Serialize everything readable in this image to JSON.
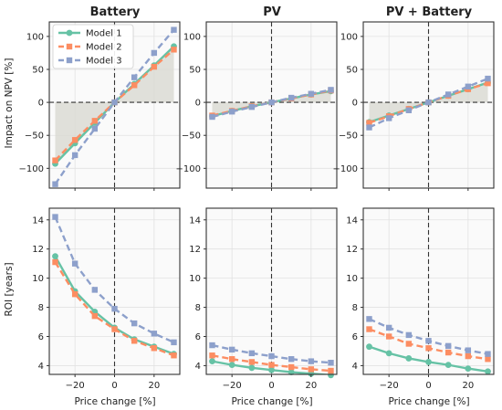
{
  "figure": {
    "titles": [
      "Battery",
      "PV",
      "PV + Battery"
    ],
    "ylabel_top": "Impact on NPV [%]",
    "ylabel_bottom": "ROI [years]",
    "xlabel": "Price change [%]"
  },
  "legend": {
    "placement": "upper-left of first panel",
    "items": [
      {
        "label": "Model 1",
        "color": "#66c2a5",
        "marker": "circle",
        "linestyle": "solid"
      },
      {
        "label": "Model 2",
        "color": "#fc8d62",
        "marker": "square",
        "linestyle": "dashed"
      },
      {
        "label": "Model 3",
        "color": "#8da0cb",
        "marker": "square",
        "linestyle": "dashed"
      }
    ]
  },
  "chart_data": [
    {
      "type": "line",
      "title": "Battery",
      "xlabel": "",
      "ylabel": "Impact on NPV [%]",
      "x": [
        -30,
        -20,
        -10,
        0,
        10,
        20,
        30
      ],
      "xlim": [
        -33,
        33
      ],
      "ylim": [
        -130,
        122
      ],
      "xticks": [
        -20,
        0,
        20
      ],
      "yticks": [
        -100,
        -50,
        0,
        50,
        100
      ],
      "grid": true,
      "zero_lines": true,
      "shaded_band": true,
      "series": [
        {
          "name": "Model 1",
          "values": [
            -93,
            -62,
            -31,
            0,
            28,
            56,
            85
          ]
        },
        {
          "name": "Model 2",
          "values": [
            -88,
            -57,
            -28,
            0,
            26,
            54,
            80
          ]
        },
        {
          "name": "Model 3",
          "values": [
            -124,
            -80,
            -40,
            0,
            38,
            75,
            110
          ]
        }
      ]
    },
    {
      "type": "line",
      "title": "PV",
      "xlabel": "",
      "ylabel": "",
      "x": [
        -30,
        -20,
        -10,
        0,
        10,
        20,
        30
      ],
      "xlim": [
        -33,
        33
      ],
      "ylim": [
        -130,
        122
      ],
      "xticks": [
        -20,
        0,
        20
      ],
      "yticks": [
        -100,
        -50,
        0,
        50,
        100
      ],
      "grid": true,
      "zero_lines": true,
      "shaded_band": true,
      "series": [
        {
          "name": "Model 1",
          "values": [
            -21,
            -13,
            -6,
            0,
            6,
            12,
            17
          ]
        },
        {
          "name": "Model 2",
          "values": [
            -20,
            -13,
            -6,
            0,
            6,
            12,
            18
          ]
        },
        {
          "name": "Model 3",
          "values": [
            -22,
            -14,
            -7,
            0,
            7,
            13,
            19
          ]
        }
      ]
    },
    {
      "type": "line",
      "title": "PV + Battery",
      "xlabel": "",
      "ylabel": "",
      "x": [
        -30,
        -20,
        -10,
        0,
        10,
        20,
        30
      ],
      "xlim": [
        -33,
        33
      ],
      "ylim": [
        -130,
        122
      ],
      "xticks": [
        -20,
        0,
        20
      ],
      "yticks": [
        -100,
        -50,
        0,
        50,
        100
      ],
      "grid": true,
      "zero_lines": true,
      "shaded_band": true,
      "series": [
        {
          "name": "Model 1",
          "values": [
            -30,
            -20,
            -10,
            0,
            10,
            20,
            30
          ]
        },
        {
          "name": "Model 2",
          "values": [
            -31,
            -21,
            -10,
            0,
            10,
            20,
            29
          ]
        },
        {
          "name": "Model 3",
          "values": [
            -38,
            -24,
            -12,
            0,
            12,
            24,
            36
          ]
        }
      ]
    },
    {
      "type": "line",
      "title": "",
      "xlabel": "Price change [%]",
      "ylabel": "ROI [years]",
      "x": [
        -30,
        -20,
        -10,
        0,
        10,
        20,
        30
      ],
      "xlim": [
        -33,
        33
      ],
      "ylim": [
        3.4,
        14.8
      ],
      "xticks": [
        -20,
        0,
        20
      ],
      "yticks": [
        4,
        6,
        8,
        10,
        12,
        14
      ],
      "grid": true,
      "zero_lines": true,
      "shaded_band": false,
      "series": [
        {
          "name": "Model 1",
          "values": [
            11.5,
            9.1,
            7.7,
            6.6,
            5.8,
            5.3,
            4.8
          ]
        },
        {
          "name": "Model 2",
          "values": [
            11.1,
            8.9,
            7.4,
            6.5,
            5.7,
            5.2,
            4.7
          ]
        },
        {
          "name": "Model 3",
          "values": [
            14.2,
            11.0,
            9.2,
            7.9,
            6.9,
            6.2,
            5.6
          ]
        }
      ]
    },
    {
      "type": "line",
      "title": "",
      "xlabel": "Price change [%]",
      "ylabel": "",
      "x": [
        -30,
        -20,
        -10,
        0,
        10,
        20,
        30
      ],
      "xlim": [
        -33,
        33
      ],
      "ylim": [
        3.4,
        14.8
      ],
      "xticks": [
        -20,
        0,
        20
      ],
      "yticks": [
        4,
        6,
        8,
        10,
        12,
        14
      ],
      "grid": true,
      "zero_lines": true,
      "shaded_band": false,
      "series": [
        {
          "name": "Model 1",
          "values": [
            4.3,
            4.05,
            3.85,
            3.7,
            3.55,
            3.45,
            3.35
          ]
        },
        {
          "name": "Model 2",
          "values": [
            4.7,
            4.45,
            4.25,
            4.05,
            3.9,
            3.75,
            3.65
          ]
        },
        {
          "name": "Model 3",
          "values": [
            5.4,
            5.1,
            4.85,
            4.65,
            4.45,
            4.3,
            4.2
          ]
        }
      ]
    },
    {
      "type": "line",
      "title": "",
      "xlabel": "Price change [%]",
      "ylabel": "",
      "x": [
        -30,
        -20,
        -10,
        0,
        10,
        20,
        30
      ],
      "xlim": [
        -33,
        33
      ],
      "ylim": [
        3.4,
        14.8
      ],
      "xticks": [
        -20,
        0,
        20
      ],
      "yticks": [
        4,
        6,
        8,
        10,
        12,
        14
      ],
      "grid": true,
      "zero_lines": true,
      "shaded_band": false,
      "series": [
        {
          "name": "Model 1",
          "values": [
            5.3,
            4.85,
            4.5,
            4.25,
            4.05,
            3.8,
            3.6
          ]
        },
        {
          "name": "Model 2",
          "values": [
            6.5,
            6.0,
            5.5,
            5.2,
            4.9,
            4.65,
            4.45
          ]
        },
        {
          "name": "Model 3",
          "values": [
            7.2,
            6.6,
            6.1,
            5.7,
            5.35,
            5.05,
            4.8
          ]
        }
      ]
    }
  ]
}
